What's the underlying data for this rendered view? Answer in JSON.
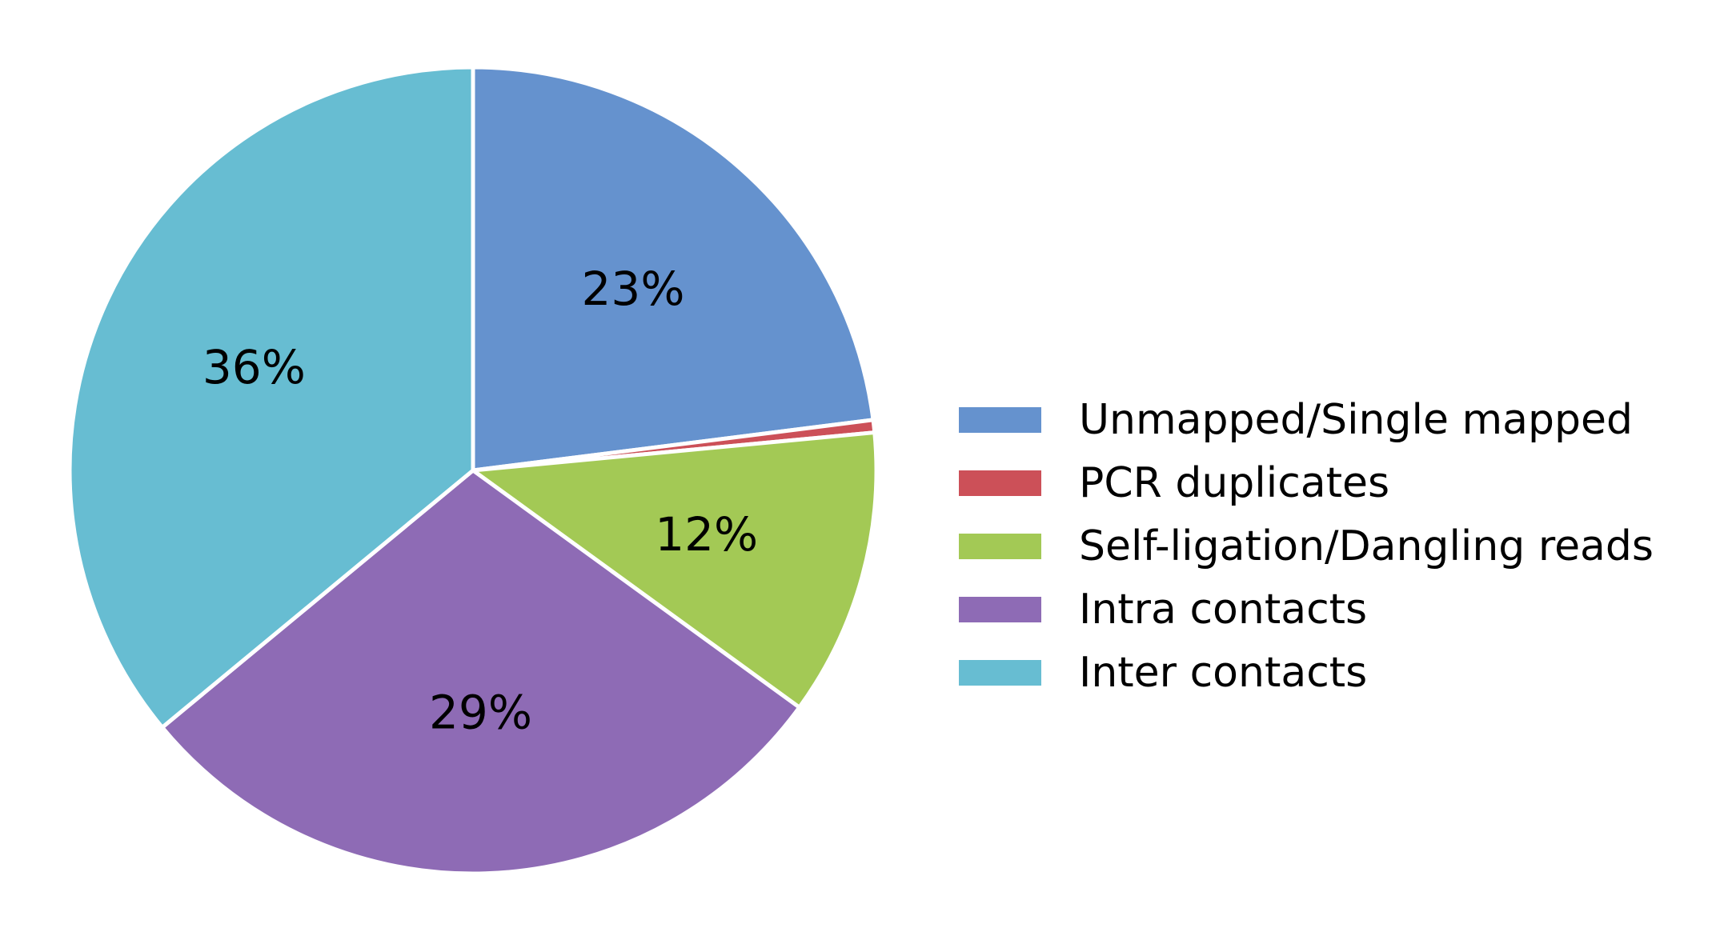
{
  "chart_data": {
    "type": "pie",
    "start_angle_deg": 90,
    "direction": "clockwise",
    "legend_position": "right",
    "series": [
      {
        "name": "Unmapped/Single mapped",
        "value": 23.0,
        "label": "23%",
        "color": "#6592CE"
      },
      {
        "name": "PCR duplicates",
        "value": 0.5,
        "label": "",
        "color": "#CC5058"
      },
      {
        "name": "Self-ligation/Dangling reads",
        "value": 11.5,
        "label": "12%",
        "color": "#A3C955"
      },
      {
        "name": "Intra contacts",
        "value": 29.0,
        "label": "29%",
        "color": "#8E6BB5"
      },
      {
        "name": "Inter contacts",
        "value": 36.0,
        "label": "36%",
        "color": "#67BDD2"
      }
    ]
  }
}
